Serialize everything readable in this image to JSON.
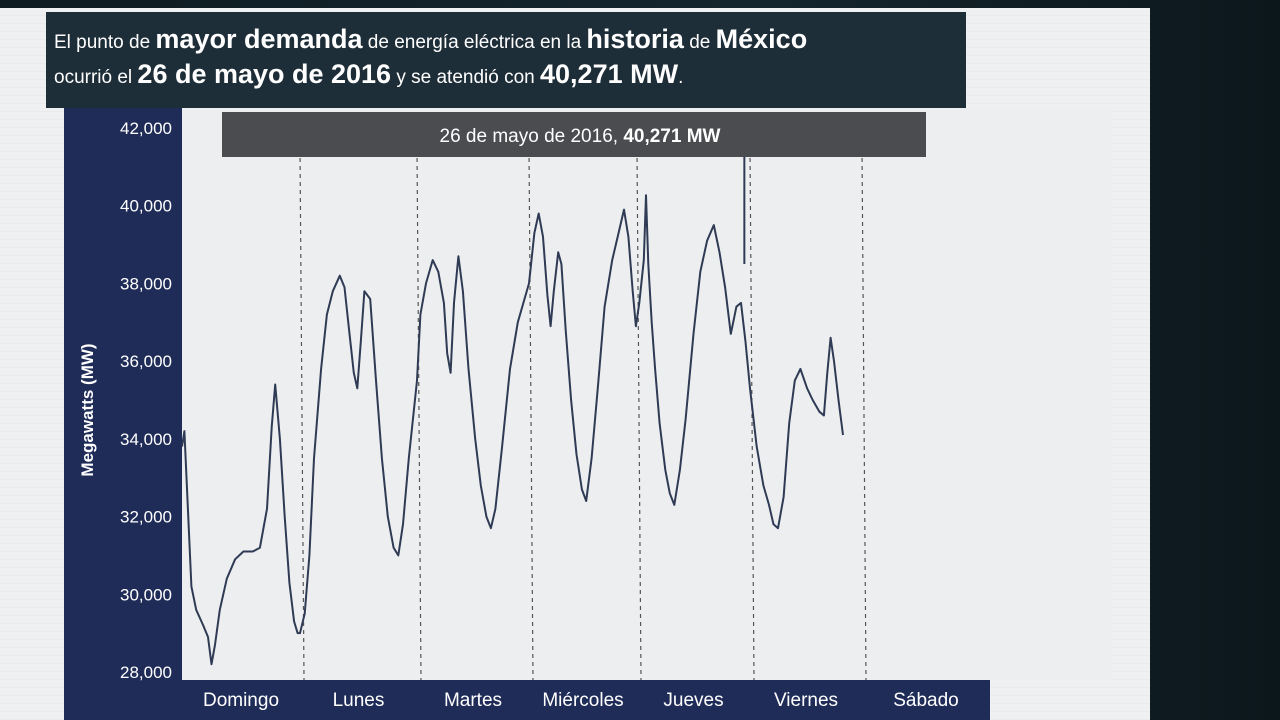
{
  "headline": {
    "line1": [
      {
        "text": "El punto de ",
        "style": "sm"
      },
      {
        "text": "mayor demanda",
        "style": "bg"
      },
      {
        "text": " de energía eléctrica en la ",
        "style": "sm"
      },
      {
        "text": "historia",
        "style": "bg"
      },
      {
        "text": " de ",
        "style": "sm"
      },
      {
        "text": "México",
        "style": "bg"
      }
    ],
    "line2": [
      {
        "text": "ocurrió el ",
        "style": "sm"
      },
      {
        "text": "26 de mayo de 2016",
        "style": "bg"
      },
      {
        "text": " y se atendió con ",
        "style": "sm"
      },
      {
        "text": "40,271 MW",
        "style": "bg"
      },
      {
        "text": ".",
        "style": "sm"
      }
    ]
  },
  "colors": {
    "panel_dark": "#1e2e38",
    "axis_band": "#1f2c58",
    "banner": "#4a4c50",
    "line": "#2f3b55",
    "plot_bg": "#eceeef"
  },
  "chart_data": {
    "type": "line",
    "ylabel": "Megawatts (MW)",
    "ylim": [
      28000,
      42000
    ],
    "yticks": [
      "42,000",
      "40,000",
      "38,000",
      "36,000",
      "34,000",
      "32,000",
      "30,000",
      "28,000"
    ],
    "ytick_values": [
      42000,
      40000,
      38000,
      36000,
      34000,
      32000,
      30000,
      28000
    ],
    "categories": [
      "Domingo",
      "Lunes",
      "Martes",
      "Miércoles",
      "Jueves",
      "Viernes",
      "Sábado"
    ],
    "grid": "vertical dashed day separators",
    "peak_annotation": {
      "prefix": "26 de mayo de 2016, ",
      "value": "40,271 MW",
      "day_index": 4,
      "day_fraction": 0.95
    },
    "series": [
      {
        "values_day_fraction": [
          [
            0.0,
            33800
          ],
          [
            0.02,
            34200
          ],
          [
            0.05,
            32200
          ],
          [
            0.08,
            30200
          ],
          [
            0.12,
            29600
          ],
          [
            0.18,
            29200
          ],
          [
            0.22,
            28900
          ],
          [
            0.25,
            28200
          ],
          [
            0.28,
            28700
          ],
          [
            0.32,
            29600
          ],
          [
            0.38,
            30400
          ],
          [
            0.45,
            30900
          ],
          [
            0.52,
            31100
          ],
          [
            0.6,
            31100
          ],
          [
            0.66,
            31200
          ],
          [
            0.72,
            32200
          ],
          [
            0.76,
            34300
          ],
          [
            0.79,
            35400
          ],
          [
            0.83,
            34000
          ],
          [
            0.87,
            32000
          ],
          [
            0.91,
            30300
          ],
          [
            0.95,
            29300
          ],
          [
            0.98,
            29000
          ],
          [
            1.0,
            29000
          ],
          [
            1.04,
            29500
          ],
          [
            1.08,
            31000
          ],
          [
            1.12,
            33500
          ],
          [
            1.18,
            35800
          ],
          [
            1.23,
            37200
          ],
          [
            1.28,
            37800
          ],
          [
            1.34,
            38200
          ],
          [
            1.38,
            37900
          ],
          [
            1.42,
            36800
          ],
          [
            1.46,
            35700
          ],
          [
            1.49,
            35300
          ],
          [
            1.52,
            36500
          ],
          [
            1.55,
            37800
          ],
          [
            1.6,
            37600
          ],
          [
            1.65,
            35500
          ],
          [
            1.7,
            33500
          ],
          [
            1.75,
            32000
          ],
          [
            1.8,
            31200
          ],
          [
            1.84,
            31000
          ],
          [
            1.88,
            31800
          ],
          [
            1.93,
            33500
          ],
          [
            2.0,
            35500
          ],
          [
            2.03,
            37200
          ],
          [
            2.08,
            38000
          ],
          [
            2.14,
            38600
          ],
          [
            2.19,
            38300
          ],
          [
            2.24,
            37500
          ],
          [
            2.27,
            36200
          ],
          [
            2.3,
            35700
          ],
          [
            2.33,
            37500
          ],
          [
            2.37,
            38700
          ],
          [
            2.41,
            37800
          ],
          [
            2.46,
            35800
          ],
          [
            2.52,
            34000
          ],
          [
            2.57,
            32800
          ],
          [
            2.62,
            32000
          ],
          [
            2.66,
            31700
          ],
          [
            2.7,
            32200
          ],
          [
            2.76,
            33800
          ],
          [
            2.83,
            35800
          ],
          [
            2.9,
            37000
          ],
          [
            3.0,
            38000
          ],
          [
            3.05,
            39300
          ],
          [
            3.09,
            39800
          ],
          [
            3.13,
            39200
          ],
          [
            3.17,
            37700
          ],
          [
            3.2,
            36900
          ],
          [
            3.23,
            37800
          ],
          [
            3.27,
            38800
          ],
          [
            3.3,
            38500
          ],
          [
            3.34,
            36800
          ],
          [
            3.39,
            35000
          ],
          [
            3.44,
            33600
          ],
          [
            3.49,
            32700
          ],
          [
            3.53,
            32400
          ],
          [
            3.58,
            33500
          ],
          [
            3.64,
            35400
          ],
          [
            3.7,
            37400
          ],
          [
            3.77,
            38600
          ],
          [
            3.83,
            39300
          ],
          [
            3.88,
            39900
          ],
          [
            3.92,
            39200
          ],
          [
            3.96,
            37800
          ],
          [
            3.99,
            36900
          ],
          [
            4.02,
            37500
          ],
          [
            4.06,
            38600
          ],
          [
            4.08,
            40271
          ],
          [
            4.1,
            38500
          ],
          [
            4.13,
            37000
          ],
          [
            4.16,
            35800
          ],
          [
            4.2,
            34400
          ],
          [
            4.25,
            33200
          ],
          [
            4.29,
            32600
          ],
          [
            4.33,
            32300
          ],
          [
            4.38,
            33200
          ],
          [
            4.43,
            34500
          ],
          [
            4.5,
            36700
          ],
          [
            4.56,
            38300
          ],
          [
            4.62,
            39100
          ],
          [
            4.68,
            39500
          ],
          [
            4.73,
            38800
          ],
          [
            4.78,
            37900
          ],
          [
            4.83,
            36700
          ],
          [
            4.88,
            37400
          ],
          [
            4.92,
            37500
          ],
          [
            4.96,
            36500
          ],
          [
            5.0,
            35300
          ],
          [
            5.06,
            33800
          ],
          [
            5.12,
            32800
          ],
          [
            5.17,
            32300
          ],
          [
            5.21,
            31800
          ],
          [
            5.25,
            31700
          ],
          [
            5.3,
            32500
          ],
          [
            5.35,
            34400
          ],
          [
            5.4,
            35500
          ],
          [
            5.45,
            35800
          ],
          [
            5.51,
            35300
          ],
          [
            5.56,
            35000
          ],
          [
            5.62,
            34700
          ],
          [
            5.66,
            34600
          ],
          [
            5.69,
            35700
          ],
          [
            5.72,
            36600
          ],
          [
            5.75,
            36000
          ],
          [
            5.79,
            35000
          ],
          [
            5.83,
            34100
          ]
        ]
      }
    ]
  }
}
